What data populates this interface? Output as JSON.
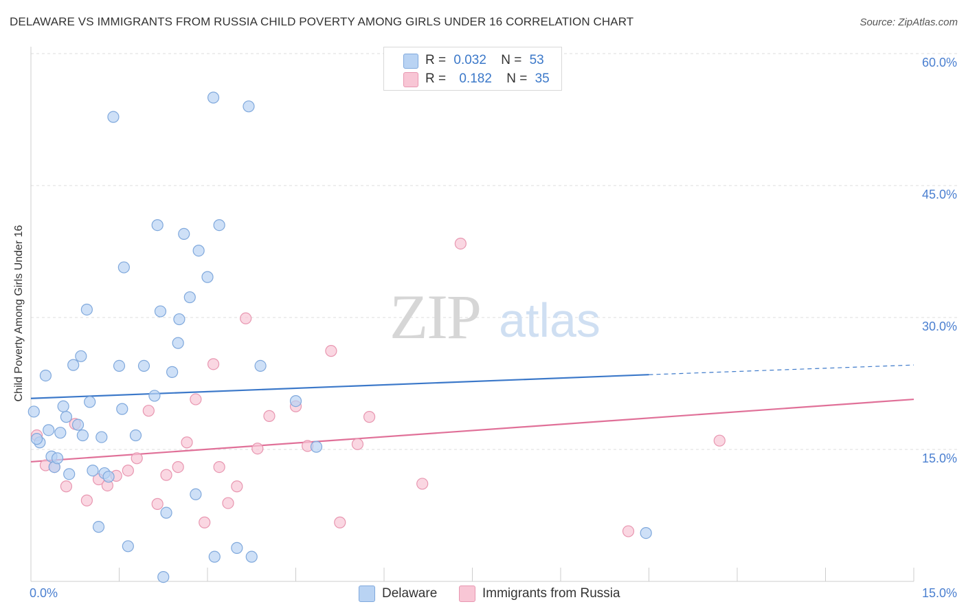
{
  "title": "DELAWARE VS IMMIGRANTS FROM RUSSIA CHILD POVERTY AMONG GIRLS UNDER 16 CORRELATION CHART",
  "source": "Source: ZipAtlas.com",
  "watermark": {
    "zip": "ZIP",
    "atlas": "atlas"
  },
  "legend": {
    "rows": [
      {
        "r_label": "R =",
        "r_value": "0.032",
        "n_label": "N =",
        "n_value": "53"
      },
      {
        "r_label": "R =",
        "r_value": "0.182",
        "n_label": "N =",
        "n_value": "35"
      }
    ]
  },
  "colors": {
    "delaware_fill": "#b9d3f3",
    "delaware_stroke": "#7fa8dc",
    "delaware_line": "#3b78c9",
    "russia_fill": "#f8c6d5",
    "russia_stroke": "#e896b0",
    "russia_line": "#e07098",
    "grid": "#dcdcdc",
    "axis_text": "#4a7fd0"
  },
  "chart_data": {
    "type": "scatter",
    "title": "DELAWARE VS IMMIGRANTS FROM RUSSIA CHILD POVERTY AMONG GIRLS UNDER 16 CORRELATION CHART",
    "xlabel": "",
    "ylabel": "Child Poverty Among Girls Under 16",
    "xlim": [
      0,
      15
    ],
    "ylim": [
      0,
      60
    ],
    "x_tick_labels": [
      "0.0%",
      "15.0%"
    ],
    "y_ticks": [
      15,
      30,
      45,
      60
    ],
    "y_tick_labels": [
      "15.0%",
      "30.0%",
      "45.0%",
      "60.0%"
    ],
    "grid": true,
    "legend_position": "top-center",
    "series": [
      {
        "name": "Delaware",
        "R": 0.032,
        "N": 53,
        "trend": {
          "start": [
            0,
            20.8
          ],
          "end": [
            10.5,
            23.5
          ],
          "dashed_end": [
            15,
            24.6
          ]
        },
        "points": [
          [
            0.05,
            19.3
          ],
          [
            0.15,
            15.8
          ],
          [
            0.25,
            23.4
          ],
          [
            0.3,
            17.2
          ],
          [
            0.35,
            14.2
          ],
          [
            0.4,
            13.0
          ],
          [
            0.45,
            14.0
          ],
          [
            0.5,
            16.9
          ],
          [
            0.55,
            19.9
          ],
          [
            0.6,
            18.7
          ],
          [
            0.65,
            12.2
          ],
          [
            0.72,
            24.6
          ],
          [
            0.8,
            17.8
          ],
          [
            0.85,
            25.6
          ],
          [
            0.88,
            16.6
          ],
          [
            0.95,
            30.9
          ],
          [
            1.0,
            20.4
          ],
          [
            1.05,
            12.6
          ],
          [
            1.15,
            6.2
          ],
          [
            1.2,
            16.4
          ],
          [
            1.25,
            12.3
          ],
          [
            1.32,
            11.9
          ],
          [
            1.4,
            52.8
          ],
          [
            1.5,
            24.5
          ],
          [
            1.55,
            19.6
          ],
          [
            1.58,
            35.7
          ],
          [
            1.65,
            4.0
          ],
          [
            1.78,
            16.6
          ],
          [
            1.92,
            24.5
          ],
          [
            2.1,
            21.1
          ],
          [
            2.15,
            40.5
          ],
          [
            2.2,
            30.7
          ],
          [
            2.25,
            0.5
          ],
          [
            2.3,
            7.8
          ],
          [
            2.4,
            23.8
          ],
          [
            2.5,
            27.1
          ],
          [
            2.52,
            29.8
          ],
          [
            2.6,
            39.5
          ],
          [
            2.7,
            32.3
          ],
          [
            2.8,
            9.9
          ],
          [
            2.85,
            37.6
          ],
          [
            3.0,
            34.6
          ],
          [
            3.1,
            55.0
          ],
          [
            3.12,
            2.8
          ],
          [
            3.2,
            40.5
          ],
          [
            3.5,
            3.8
          ],
          [
            3.7,
            54.0
          ],
          [
            3.75,
            2.8
          ],
          [
            3.9,
            24.5
          ],
          [
            4.5,
            20.5
          ],
          [
            4.85,
            15.3
          ],
          [
            10.45,
            5.5
          ],
          [
            0.1,
            16.2
          ]
        ]
      },
      {
        "name": "Immigrants from Russia",
        "R": 0.182,
        "N": 35,
        "trend": {
          "start": [
            0,
            13.6
          ],
          "end": [
            15,
            20.7
          ]
        },
        "points": [
          [
            0.1,
            16.6
          ],
          [
            0.25,
            13.2
          ],
          [
            0.4,
            13.0
          ],
          [
            0.6,
            10.8
          ],
          [
            0.75,
            17.9
          ],
          [
            0.95,
            9.2
          ],
          [
            1.15,
            11.6
          ],
          [
            1.3,
            10.9
          ],
          [
            1.45,
            12.0
          ],
          [
            1.65,
            12.6
          ],
          [
            1.8,
            14.0
          ],
          [
            2.0,
            19.4
          ],
          [
            2.15,
            8.8
          ],
          [
            2.3,
            12.1
          ],
          [
            2.5,
            13.0
          ],
          [
            2.65,
            15.8
          ],
          [
            2.8,
            20.7
          ],
          [
            2.95,
            6.7
          ],
          [
            3.1,
            24.7
          ],
          [
            3.2,
            13.0
          ],
          [
            3.35,
            8.9
          ],
          [
            3.5,
            10.8
          ],
          [
            3.65,
            29.9
          ],
          [
            3.85,
            15.1
          ],
          [
            4.05,
            18.8
          ],
          [
            4.5,
            19.9
          ],
          [
            4.7,
            15.4
          ],
          [
            5.1,
            26.2
          ],
          [
            5.25,
            6.7
          ],
          [
            5.55,
            15.6
          ],
          [
            5.75,
            18.7
          ],
          [
            6.65,
            11.1
          ],
          [
            7.3,
            38.4
          ],
          [
            10.15,
            5.7
          ],
          [
            11.7,
            16.0
          ]
        ]
      }
    ]
  }
}
